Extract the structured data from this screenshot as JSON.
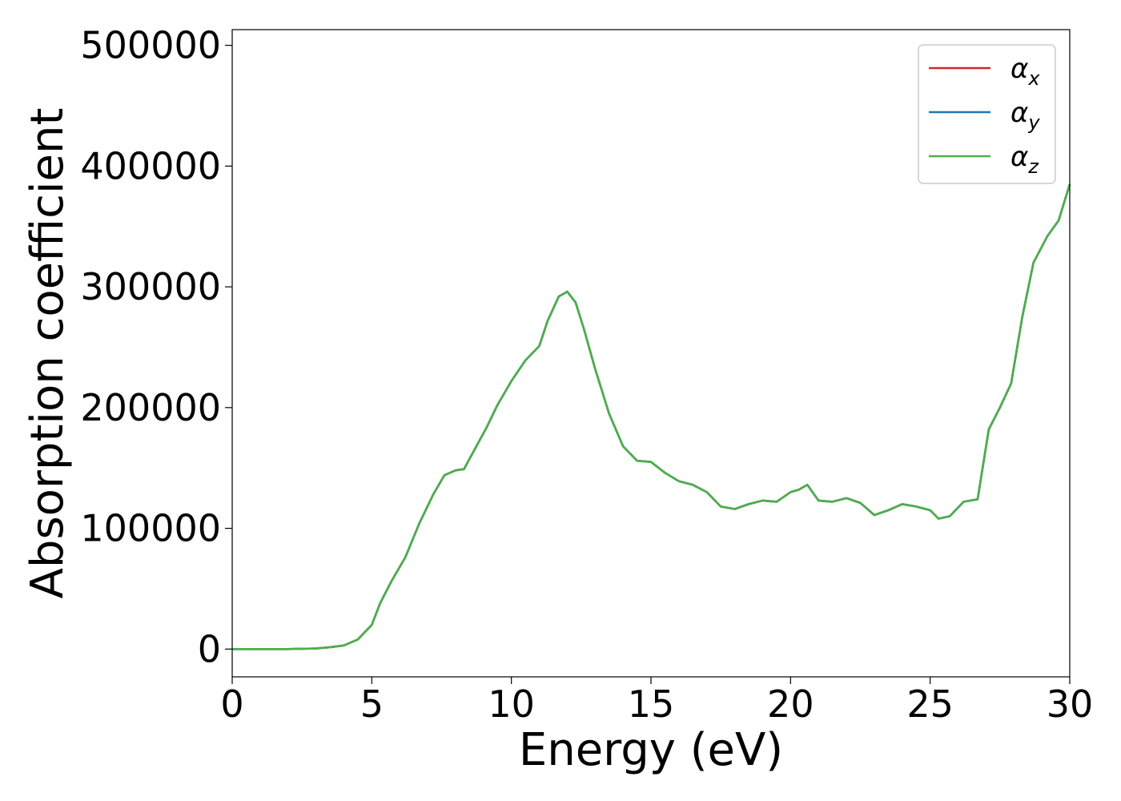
{
  "chart_data": {
    "type": "line",
    "title": "",
    "xlabel": "Energy (eV)",
    "ylabel": "Absorption coefficient",
    "xlim": [
      0,
      30
    ],
    "ylim": [
      -23000,
      513000
    ],
    "xticks": [
      "0",
      "5",
      "10",
      "15",
      "20",
      "25",
      "30"
    ],
    "yticks": [
      "0",
      "100000",
      "200000",
      "300000",
      "400000",
      "500000"
    ],
    "grid": false,
    "legend_position": "top-right",
    "series": [
      {
        "name": "α_x",
        "symbol": "α",
        "subscript": "x",
        "color": "#d62728",
        "x": [
          0,
          1,
          2,
          3,
          3.5,
          4,
          4.5,
          5,
          5.3,
          5.7,
          6.2,
          6.7,
          7.2,
          7.6,
          8.0,
          8.3,
          8.7,
          9.1,
          9.5,
          10.0,
          10.5,
          11.0,
          11.3,
          11.7,
          12.0,
          12.3,
          12.6,
          13.0,
          13.5,
          14.0,
          14.5,
          15.0,
          15.5,
          16.0,
          16.5,
          17.0,
          17.5,
          18.0,
          18.5,
          19.0,
          19.5,
          20.0,
          20.3,
          20.6,
          21.0,
          21.5,
          22.0,
          22.5,
          23.0,
          23.5,
          24.0,
          24.5,
          25.0,
          25.3,
          25.7,
          26.2,
          26.7,
          27.1,
          27.5,
          27.9,
          28.3,
          28.7,
          29.2,
          29.6,
          30.0
        ],
        "values": [
          0,
          0,
          0,
          500,
          1500,
          3000,
          8000,
          20000,
          38000,
          56000,
          76000,
          104000,
          128000,
          144000,
          148000,
          149000,
          166000,
          183000,
          202000,
          222000,
          239000,
          251000,
          272000,
          292000,
          296000,
          287000,
          265000,
          232000,
          195000,
          168000,
          156000,
          155000,
          146000,
          139000,
          136000,
          130000,
          118000,
          116000,
          120000,
          123000,
          122000,
          130000,
          132000,
          136000,
          123000,
          122000,
          125000,
          121000,
          111000,
          115000,
          120000,
          118000,
          115000,
          108000,
          110000,
          122000,
          124000,
          182000,
          200000,
          220000,
          275000,
          320000,
          342000,
          355000,
          385000
        ]
      },
      {
        "name": "α_y",
        "symbol": "α",
        "subscript": "y",
        "color": "#1f77b4",
        "x": [
          0,
          1,
          2,
          3,
          3.5,
          4,
          4.5,
          5,
          5.3,
          5.7,
          6.2,
          6.7,
          7.2,
          7.6,
          8.0,
          8.3,
          8.7,
          9.1,
          9.5,
          10.0,
          10.5,
          11.0,
          11.3,
          11.7,
          12.0,
          12.3,
          12.6,
          13.0,
          13.5,
          14.0,
          14.5,
          15.0,
          15.5,
          16.0,
          16.5,
          17.0,
          17.5,
          18.0,
          18.5,
          19.0,
          19.5,
          20.0,
          20.3,
          20.6,
          21.0,
          21.5,
          22.0,
          22.5,
          23.0,
          23.5,
          24.0,
          24.5,
          25.0,
          25.3,
          25.7,
          26.2,
          26.7,
          27.1,
          27.5,
          27.9,
          28.3,
          28.7,
          29.2,
          29.6,
          30.0
        ],
        "values": [
          0,
          0,
          0,
          500,
          1500,
          3000,
          8000,
          20000,
          38000,
          56000,
          76000,
          104000,
          128000,
          144000,
          148000,
          149000,
          166000,
          183000,
          202000,
          222000,
          239000,
          251000,
          272000,
          292000,
          296000,
          287000,
          265000,
          232000,
          195000,
          168000,
          156000,
          155000,
          146000,
          139000,
          136000,
          130000,
          118000,
          116000,
          120000,
          123000,
          122000,
          130000,
          132000,
          136000,
          123000,
          122000,
          125000,
          121000,
          111000,
          115000,
          120000,
          118000,
          115000,
          108000,
          110000,
          122000,
          124000,
          182000,
          200000,
          220000,
          275000,
          320000,
          342000,
          355000,
          385000
        ]
      },
      {
        "name": "α_z",
        "symbol": "α",
        "subscript": "z",
        "color": "#4daf4a",
        "x": [
          0,
          1,
          2,
          3,
          3.5,
          4,
          4.5,
          5,
          5.3,
          5.7,
          6.2,
          6.7,
          7.2,
          7.6,
          8.0,
          8.3,
          8.7,
          9.1,
          9.5,
          10.0,
          10.5,
          11.0,
          11.3,
          11.7,
          12.0,
          12.3,
          12.6,
          13.0,
          13.5,
          14.0,
          14.5,
          15.0,
          15.5,
          16.0,
          16.5,
          17.0,
          17.5,
          18.0,
          18.5,
          19.0,
          19.5,
          20.0,
          20.3,
          20.6,
          21.0,
          21.5,
          22.0,
          22.5,
          23.0,
          23.5,
          24.0,
          24.5,
          25.0,
          25.3,
          25.7,
          26.2,
          26.7,
          27.1,
          27.5,
          27.9,
          28.3,
          28.7,
          29.2,
          29.6,
          30.0
        ],
        "values": [
          0,
          0,
          0,
          500,
          1500,
          3000,
          8000,
          20000,
          38000,
          56000,
          76000,
          104000,
          128000,
          144000,
          148000,
          149000,
          166000,
          183000,
          202000,
          222000,
          239000,
          251000,
          272000,
          292000,
          296000,
          287000,
          265000,
          232000,
          195000,
          168000,
          156000,
          155000,
          146000,
          139000,
          136000,
          130000,
          118000,
          116000,
          120000,
          123000,
          122000,
          130000,
          132000,
          136000,
          123000,
          122000,
          125000,
          121000,
          111000,
          115000,
          120000,
          118000,
          115000,
          108000,
          110000,
          122000,
          124000,
          182000,
          200000,
          220000,
          275000,
          320000,
          342000,
          355000,
          385000
        ]
      }
    ]
  }
}
